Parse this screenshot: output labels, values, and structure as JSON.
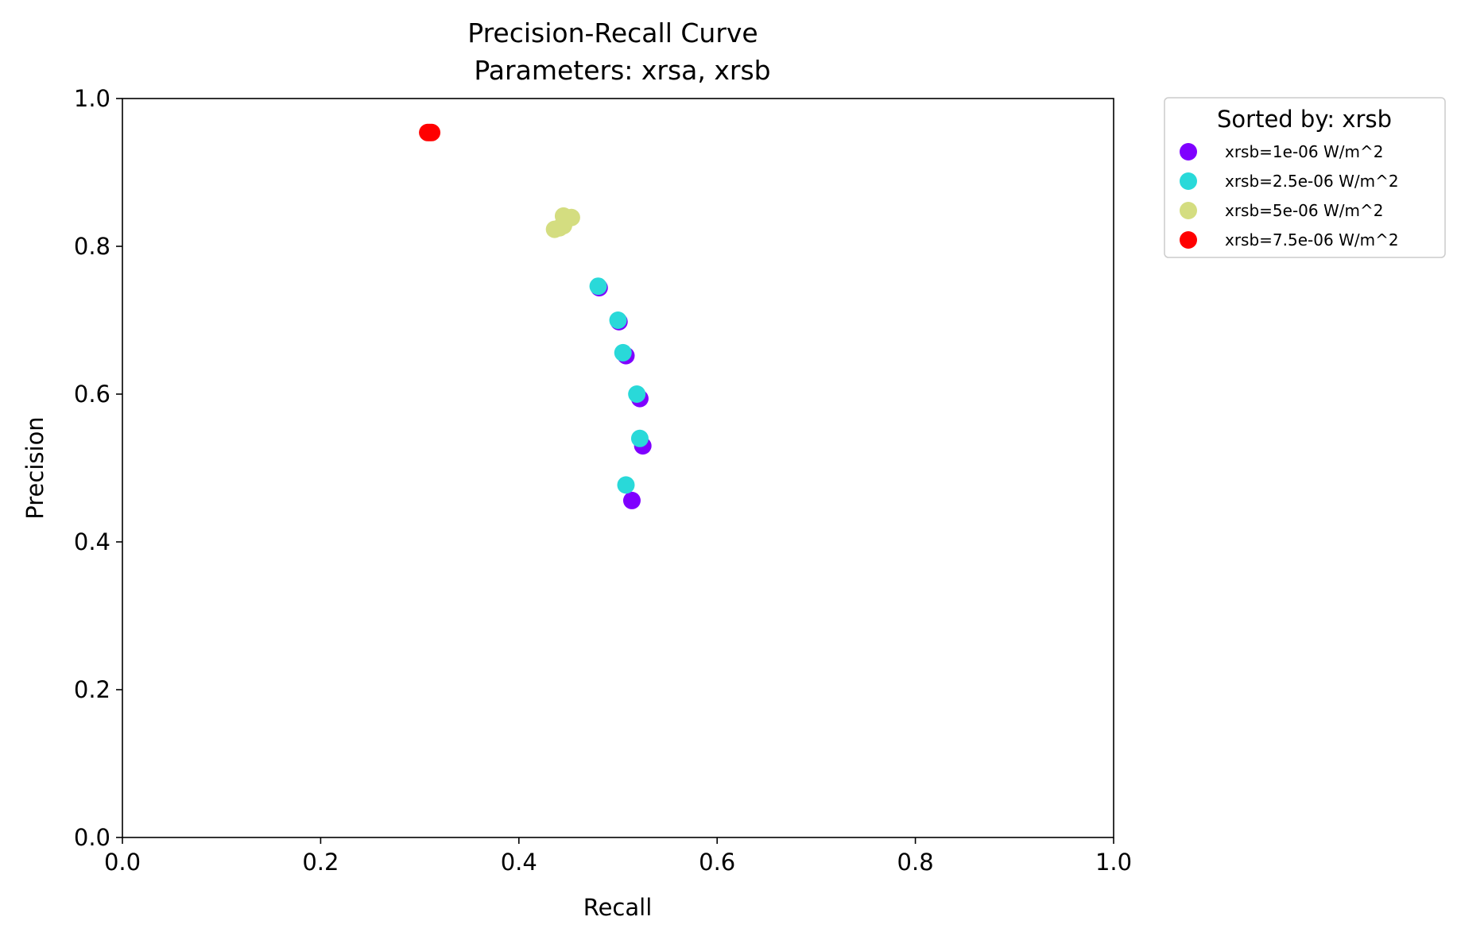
{
  "chart_data": {
    "type": "scatter",
    "title": "Precision-Recall Curve",
    "subtitle": "Parameters: xrsa, xrsb",
    "xlabel": "Recall",
    "ylabel": "Precision",
    "xlim": [
      0.0,
      1.0
    ],
    "ylim": [
      0.0,
      1.0
    ],
    "xticks": [
      "0.0",
      "0.2",
      "0.4",
      "0.6",
      "0.8",
      "1.0"
    ],
    "yticks": [
      "0.0",
      "0.2",
      "0.4",
      "0.6",
      "0.8",
      "1.0"
    ],
    "grid": false,
    "legend": {
      "title": "Sorted by: xrsb",
      "placement": "outside-top-right"
    },
    "series": [
      {
        "name": "xrsb=1e-06 W/m^2",
        "color": "#7f00ff",
        "points": [
          {
            "x": 0.481,
            "y": 0.744
          },
          {
            "x": 0.501,
            "y": 0.698
          },
          {
            "x": 0.508,
            "y": 0.652
          },
          {
            "x": 0.522,
            "y": 0.594
          },
          {
            "x": 0.525,
            "y": 0.53
          },
          {
            "x": 0.514,
            "y": 0.456
          }
        ]
      },
      {
        "name": "xrsb=2.5e-06 W/m^2",
        "color": "#29d9d9",
        "points": [
          {
            "x": 0.48,
            "y": 0.746
          },
          {
            "x": 0.5,
            "y": 0.7
          },
          {
            "x": 0.505,
            "y": 0.656
          },
          {
            "x": 0.519,
            "y": 0.6
          },
          {
            "x": 0.522,
            "y": 0.54
          },
          {
            "x": 0.508,
            "y": 0.477
          }
        ]
      },
      {
        "name": "xrsb=5e-06 W/m^2",
        "color": "#d4dd80",
        "points": [
          {
            "x": 0.436,
            "y": 0.823
          },
          {
            "x": 0.441,
            "y": 0.825
          },
          {
            "x": 0.445,
            "y": 0.828
          },
          {
            "x": 0.445,
            "y": 0.841
          },
          {
            "x": 0.449,
            "y": 0.837
          },
          {
            "x": 0.453,
            "y": 0.839
          }
        ]
      },
      {
        "name": "xrsb=7.5e-06 W/m^2",
        "color": "#ff0000",
        "points": [
          {
            "x": 0.308,
            "y": 0.954
          },
          {
            "x": 0.31,
            "y": 0.954
          },
          {
            "x": 0.312,
            "y": 0.954
          }
        ]
      }
    ]
  }
}
